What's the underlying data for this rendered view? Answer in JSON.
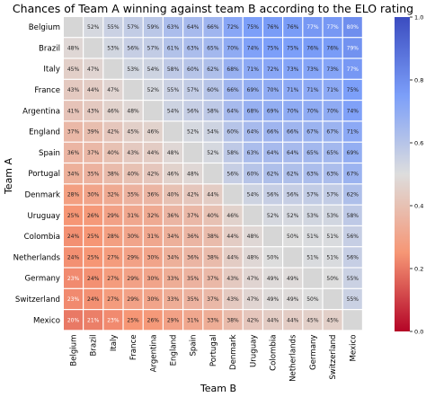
{
  "chart_data": {
    "type": "heatmap",
    "title": "Chances of Team A winning against team B according to the ELO rating",
    "xlabel": "Team B",
    "ylabel": "Team A",
    "rows": [
      "Belgium",
      "Brazil",
      "Italy",
      "France",
      "Argentina",
      "England",
      "Spain",
      "Portugal",
      "Denmark",
      "Uruguay",
      "Colombia",
      "Netherlands",
      "Germany",
      "Switzerland",
      "Mexico"
    ],
    "cols": [
      "Belgium",
      "Brazil",
      "Italy",
      "France",
      "Argentina",
      "England",
      "Spain",
      "Portugal",
      "Denmark",
      "Uruguay",
      "Colombia",
      "Netherlands",
      "Germany",
      "Switzerland",
      "Mexico"
    ],
    "values": [
      [
        null,
        52,
        55,
        57,
        59,
        63,
        64,
        66,
        72,
        75,
        76,
        76,
        77,
        77,
        80
      ],
      [
        48,
        null,
        53,
        56,
        57,
        61,
        63,
        65,
        70,
        74,
        75,
        75,
        76,
        76,
        79
      ],
      [
        45,
        47,
        null,
        53,
        54,
        58,
        60,
        62,
        68,
        71,
        72,
        73,
        73,
        73,
        77
      ],
      [
        43,
        44,
        47,
        null,
        52,
        55,
        57,
        60,
        66,
        69,
        70,
        71,
        71,
        71,
        75
      ],
      [
        41,
        43,
        46,
        48,
        null,
        54,
        56,
        58,
        64,
        68,
        69,
        70,
        70,
        70,
        74
      ],
      [
        37,
        39,
        42,
        45,
        46,
        null,
        52,
        54,
        60,
        64,
        66,
        66,
        67,
        67,
        71
      ],
      [
        36,
        37,
        40,
        43,
        44,
        48,
        null,
        52,
        58,
        63,
        64,
        64,
        65,
        65,
        69
      ],
      [
        34,
        35,
        38,
        40,
        42,
        46,
        48,
        null,
        56,
        60,
        62,
        62,
        63,
        63,
        67
      ],
      [
        28,
        30,
        32,
        35,
        36,
        40,
        42,
        44,
        null,
        54,
        56,
        56,
        57,
        57,
        62
      ],
      [
        25,
        26,
        29,
        31,
        32,
        36,
        37,
        40,
        46,
        null,
        52,
        52,
        53,
        53,
        58
      ],
      [
        24,
        25,
        28,
        30,
        31,
        34,
        36,
        38,
        44,
        48,
        null,
        50,
        51,
        51,
        56
      ],
      [
        24,
        25,
        27,
        29,
        30,
        34,
        36,
        38,
        44,
        48,
        50,
        null,
        51,
        51,
        56
      ],
      [
        23,
        24,
        27,
        29,
        30,
        33,
        35,
        37,
        43,
        47,
        49,
        49,
        null,
        50,
        55
      ],
      [
        23,
        24,
        27,
        29,
        30,
        33,
        35,
        37,
        43,
        47,
        49,
        49,
        50,
        null,
        55
      ],
      [
        20,
        21,
        23,
        25,
        26,
        29,
        31,
        33,
        38,
        42,
        44,
        44,
        45,
        45,
        null
      ]
    ],
    "value_format": "percent",
    "colormap": "coolwarm",
    "colorbar": {
      "min": 0.0,
      "max": 1.0,
      "ticks": [
        0.0,
        0.2,
        0.4,
        0.6,
        0.8,
        1.0
      ],
      "tick_labels": [
        "0.0",
        "0.2",
        "0.4",
        "0.6",
        "0.8",
        "1.0"
      ]
    },
    "missing_color": "#d6d6d6",
    "legend": "right",
    "grid": false
  }
}
